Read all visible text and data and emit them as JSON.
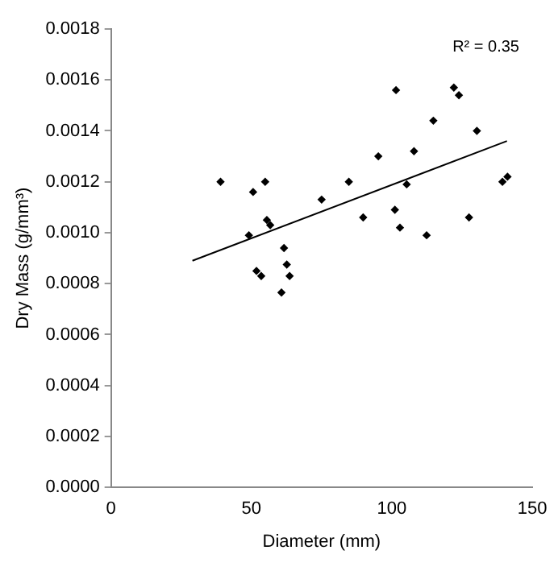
{
  "chart_data": {
    "type": "scatter",
    "xlabel": "Diameter (mm)",
    "ylabel": "Dry Mass (g/mm³)",
    "xlim": [
      0,
      150
    ],
    "xticks": [
      0,
      50,
      100,
      150
    ],
    "ylim": [
      0,
      0.0018
    ],
    "yticks": [
      {
        "value": 0,
        "label": "0.0000"
      },
      {
        "value": 0.0002,
        "label": "0.0002"
      },
      {
        "value": 0.0004,
        "label": "0.0004"
      },
      {
        "value": 0.0006,
        "label": "0.0006"
      },
      {
        "value": 0.0008,
        "label": "0.0008"
      },
      {
        "value": 0.001,
        "label": "0.0010"
      },
      {
        "value": 0.0012,
        "label": "0.0012"
      },
      {
        "value": 0.0014,
        "label": "0.0014"
      },
      {
        "value": 0.0016,
        "label": "0.0016"
      },
      {
        "value": 0.0018,
        "label": "0.0018"
      }
    ],
    "grid": false,
    "legend": false,
    "marker": "diamond",
    "annotations": [
      "R² = 0.35"
    ],
    "series": [
      {
        "color": "#000000",
        "x": [
          39,
          50.6,
          54.9,
          75,
          55.5,
          56.7,
          49.1,
          61.6,
          62.6,
          51.8,
          53.5,
          63.6,
          60.7,
          101.5,
          122.1,
          123.9,
          114.8,
          130.3,
          95.2,
          107.9,
          84.7,
          105.3,
          141.2,
          139.4,
          101.1,
          89.8,
          127.5,
          102.9,
          112.4
        ],
        "values": [
          0.0012,
          0.00116,
          0.0012,
          0.00113,
          0.00105,
          0.00103,
          0.00099,
          0.00094,
          0.000875,
          0.00085,
          0.00083,
          0.00083,
          0.000765,
          0.00156,
          0.00157,
          0.00154,
          0.00144,
          0.0014,
          0.0013,
          0.00132,
          0.0012,
          0.00119,
          0.00122,
          0.0012,
          0.00109,
          0.00106,
          0.00106,
          0.00102,
          0.00099
        ]
      },
      {
        "type": "line",
        "color": "#000000",
        "marker": "none",
        "x": [
          29,
          141
        ],
        "values": [
          0.00089,
          0.00136
        ]
      }
    ]
  }
}
